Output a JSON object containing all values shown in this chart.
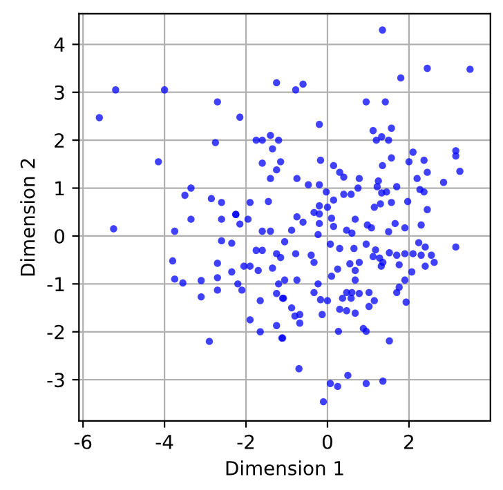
{
  "chart_data": {
    "type": "scatter",
    "xlabel": "Dimension 1",
    "ylabel": "Dimension 2",
    "xlim": [
      -6.1,
      4.0
    ],
    "ylim": [
      -3.86,
      4.64
    ],
    "xticks": [
      -6,
      -4,
      -2,
      0,
      2
    ],
    "yticks": [
      -3,
      -2,
      -1,
      0,
      1,
      2,
      3,
      4
    ],
    "grid": true,
    "marker": "circle",
    "series": [
      {
        "color": "#0000ff",
        "x": [
          -5.6,
          -5.2,
          -4.0,
          -2.7,
          -2.15,
          -2.75,
          -4.15,
          -1.75,
          -1.6,
          -1.4,
          -1.2,
          -1.35,
          -1.15,
          -1.6,
          -1.25,
          -1.4,
          -1.25,
          -0.78,
          -0.6,
          -3.5,
          -3.35,
          -2.85,
          -2.6,
          -2.25,
          -1.9,
          -1.45,
          -5.25,
          -3.75,
          -3.35,
          -2.6,
          -2.25,
          -2.15,
          -1.95,
          -1.6,
          -1.4,
          -2.6,
          -2.35,
          -1.75,
          -1.6,
          -1.25,
          -1.15,
          -3.8,
          -2.7,
          -2.05,
          -1.9,
          -2.35,
          -1.7,
          -1.35,
          -3.75,
          -3.55,
          -3.1,
          -2.7,
          -2.7,
          -3.1,
          -2.2,
          -2.1,
          -1.65,
          -1.25,
          -1.2,
          -1.1,
          -1.9,
          -1.65,
          -1.25,
          -1.1,
          -2.9,
          1.35,
          2.45,
          3.5,
          1.8,
          0.95,
          1.42,
          -0.2,
          1.12,
          1.57,
          1.2,
          1.33,
          1.5,
          -0.17,
          0.15,
          0.3,
          0.4,
          0.78,
          -0.75,
          -0.47,
          -0.2,
          -0.03,
          0.4,
          0.58,
          0.75,
          0.15,
          -0.2,
          0.0,
          1.57,
          1.35,
          2.1,
          2.0,
          2.37,
          2.45,
          2.2,
          3.15,
          3.15,
          3.25,
          2.85,
          1.25,
          1.22,
          1.7,
          1.33,
          1.45,
          2.27,
          2.37,
          1.97,
          1.57,
          1.3,
          1.15,
          2.45,
          -0.75,
          -0.33,
          -0.2,
          0.1,
          0.68,
          -0.6,
          -0.88,
          -0.2,
          0.15,
          0.47,
          0.6,
          0.98,
          1.08,
          1.66,
          1.9,
          2.3,
          1.5,
          -0.23,
          -1.05,
          0.07,
          0.3,
          0.65,
          0.95,
          1.18,
          1.12,
          1.28,
          1.36,
          1.32,
          1.52,
          1.7,
          1.9,
          2.1,
          2.24,
          2.4,
          2.3,
          2.55,
          2.62,
          2.4,
          3.15,
          2.07,
          1.76,
          1.9,
          1.76,
          1.7,
          1.93,
          -0.78,
          -0.4,
          -0.33,
          0.25,
          0.55,
          0.68,
          0.78,
          0.1,
          0.68,
          -1.05,
          -0.75,
          -0.23,
          0.6,
          0.47,
          0.78,
          1.02,
          0.37,
          0.58,
          -0.33,
          -0.17,
          0.0,
          1.02,
          1.15,
          -1.08,
          -0.88,
          -0.8,
          -0.68,
          -0.68,
          -0.13,
          0.3,
          0.47,
          0.68,
          0.27,
          0.88,
          0.95,
          -1.12,
          1.52,
          -0.7,
          0.07,
          0.25,
          0.5,
          0.95,
          1.36,
          -0.1
        ],
        "values": [
          2.47,
          3.05,
          3.05,
          2.8,
          2.48,
          1.95,
          1.55,
          2.0,
          2.0,
          2.1,
          2.0,
          1.82,
          1.55,
          1.52,
          1.38,
          1.2,
          3.2,
          3.05,
          3.17,
          0.85,
          1.0,
          0.78,
          0.7,
          0.45,
          0.7,
          0.72,
          0.15,
          0.1,
          0.35,
          0.35,
          0.45,
          0.25,
          0.35,
          0.1,
          0.1,
          -0.1,
          -0.15,
          -0.3,
          -0.3,
          -0.37,
          -0.45,
          -0.52,
          -0.57,
          -0.63,
          -0.63,
          -0.75,
          -0.72,
          -0.67,
          -0.9,
          -0.98,
          -0.93,
          -0.87,
          -1.13,
          -1.27,
          -1.0,
          -1.13,
          -1.35,
          -1.2,
          -1.0,
          -1.3,
          -1.75,
          -2.0,
          -1.87,
          -2.13,
          -2.2,
          4.3,
          3.5,
          3.48,
          3.3,
          2.8,
          2.8,
          2.33,
          2.2,
          2.25,
          2.0,
          2.07,
          2.0,
          1.58,
          1.47,
          1.33,
          1.23,
          1.2,
          1.2,
          1.07,
          1.07,
          0.92,
          0.87,
          0.87,
          1.0,
          0.75,
          0.63,
          0.6,
          1.63,
          1.47,
          1.75,
          1.55,
          1.58,
          1.33,
          1.2,
          1.78,
          1.67,
          1.35,
          1.12,
          1.15,
          1.03,
          1.03,
          0.9,
          0.92,
          0.97,
          0.92,
          0.72,
          0.7,
          0.67,
          0.6,
          0.55,
          0.4,
          0.49,
          0.46,
          0.37,
          0.35,
          0.29,
          0.12,
          0.26,
          0.2,
          0.12,
          0.06,
          0.23,
          0.17,
          0.26,
          0.17,
          0.23,
          0.09,
          0.03,
          -0.12,
          -0.17,
          -0.26,
          -0.26,
          -0.17,
          -0.29,
          -0.43,
          -0.46,
          -0.55,
          -0.63,
          -0.35,
          -0.4,
          -0.37,
          -0.37,
          -0.14,
          -0.23,
          -0.4,
          -0.4,
          -0.55,
          -0.63,
          -0.23,
          -0.75,
          -0.6,
          -0.92,
          -1.07,
          -1.18,
          -1.38,
          -0.37,
          -0.4,
          -0.55,
          -0.69,
          -0.58,
          -0.72,
          -0.55,
          -0.84,
          -0.92,
          -0.92,
          -0.92,
          -1.0,
          -1.18,
          -1.18,
          -1.2,
          -1.18,
          -1.3,
          -1.3,
          -1.18,
          -1.33,
          -1.35,
          -1.47,
          -1.35,
          -1.3,
          -1.5,
          -1.67,
          -1.64,
          -1.82,
          -1.64,
          -1.53,
          -1.56,
          -1.61,
          -1.99,
          -1.93,
          -1.99,
          -2.13,
          -2.19,
          -2.77,
          -3.08,
          -3.14,
          -2.91,
          -3.08,
          -3.03,
          -3.46
        ]
      }
    ]
  }
}
